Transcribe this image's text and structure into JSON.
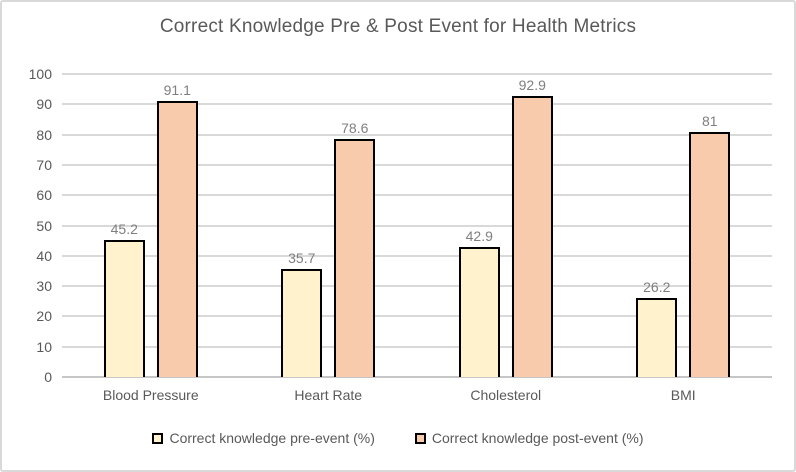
{
  "chart_data": {
    "type": "bar",
    "title": "Correct Knowledge Pre & Post Event for Health Metrics",
    "categories": [
      "Blood Pressure",
      "Heart Rate",
      "Cholesterol",
      "BMI"
    ],
    "series": [
      {
        "name": "Correct knowledge pre-event (%)",
        "values": [
          45.2,
          35.7,
          42.9,
          26.2
        ],
        "labels": [
          "45.2",
          "35.7",
          "42.9",
          "26.2"
        ],
        "color": "#FFF2CC"
      },
      {
        "name": "Correct knowledge post-event (%)",
        "values": [
          91.1,
          78.6,
          92.9,
          81
        ],
        "labels": [
          "91.1",
          "78.6",
          "92.9",
          "81"
        ],
        "color": "#F8CBAD"
      }
    ],
    "xlabel": "",
    "ylabel": "",
    "ylim": [
      0,
      100
    ],
    "yticks": [
      0,
      10,
      20,
      30,
      40,
      50,
      60,
      70,
      80,
      90,
      100
    ],
    "grid": true,
    "legend_position": "bottom",
    "colors": {
      "bar_border": "#000000",
      "gridline": "#D9D9D9",
      "axis_text": "#595959",
      "data_label": "#7F7F7F",
      "title_text": "#595959",
      "frame_border": "#D9D9D9"
    }
  }
}
